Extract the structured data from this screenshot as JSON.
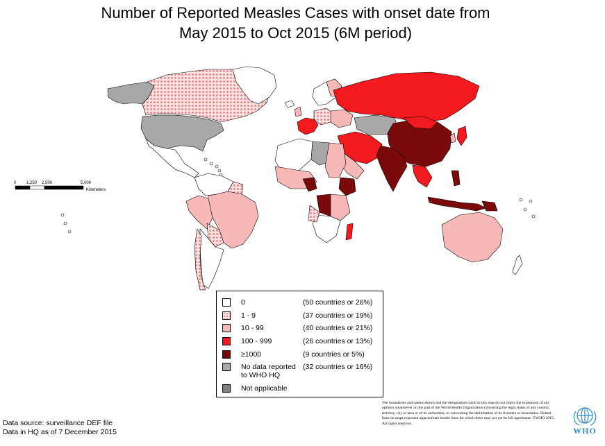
{
  "title": {
    "line1": "Number of Reported Measles Cases with onset date from",
    "line2": "May 2015 to Oct 2015 (6M period)"
  },
  "colors": {
    "zero": "#ffffff",
    "one_to_nine": "#f6c9c9",
    "ten_to_99": "#f7b8b8",
    "hundred_to_999": "#f2191f",
    "thousand_plus": "#7a0a0a",
    "no_data": "#a8a8a8",
    "not_applicable": "#808080",
    "border": "#000000",
    "who_blue": "#2e8bc9"
  },
  "scale_bar": {
    "ticks": [
      "0",
      "1,250",
      "2,500",
      "5,000"
    ],
    "unit": "Kilometers"
  },
  "legend": {
    "items": [
      {
        "key": "zero",
        "label": "0",
        "count": "(50 countries or 26%)"
      },
      {
        "key": "one_to_nine",
        "label": "1 - 9",
        "count": "(37 countries or 19%)"
      },
      {
        "key": "ten_to_99",
        "label": "10 - 99",
        "count": "(40 countries or 21%)"
      },
      {
        "key": "hundred_to_999",
        "label": "100 - 999",
        "count": "(26 countries or 13%)"
      },
      {
        "key": "thousand_plus",
        "label": "≥1000",
        "count": "(9 countries or 5%)"
      },
      {
        "key": "no_data",
        "label": "No data reported\nto WHO HQ",
        "count": "(32 countries or 16%)"
      },
      {
        "key": "not_applicable",
        "label": "Not applicable",
        "count": ""
      }
    ]
  },
  "footer": {
    "source_line1": "Data source: surveillance DEF file",
    "source_line2": "Data in HQ as of 7 December 2015",
    "disclaimer": "The boundaries and names shown and the designations used on this map do not imply the expression of any opinion whatsoever on the part of the World Health Organization concerning the legal status of any country, territory, city or area or of its authorities, or concerning the delimitation of its frontiers or boundaries.  Dotted lines on maps represent approximate border lines for which there may not yet be full agreement. ©WHO 2015. All rights reserved.",
    "logo_text": "WHO",
    "logo_icon": "who-emblem-icon"
  }
}
